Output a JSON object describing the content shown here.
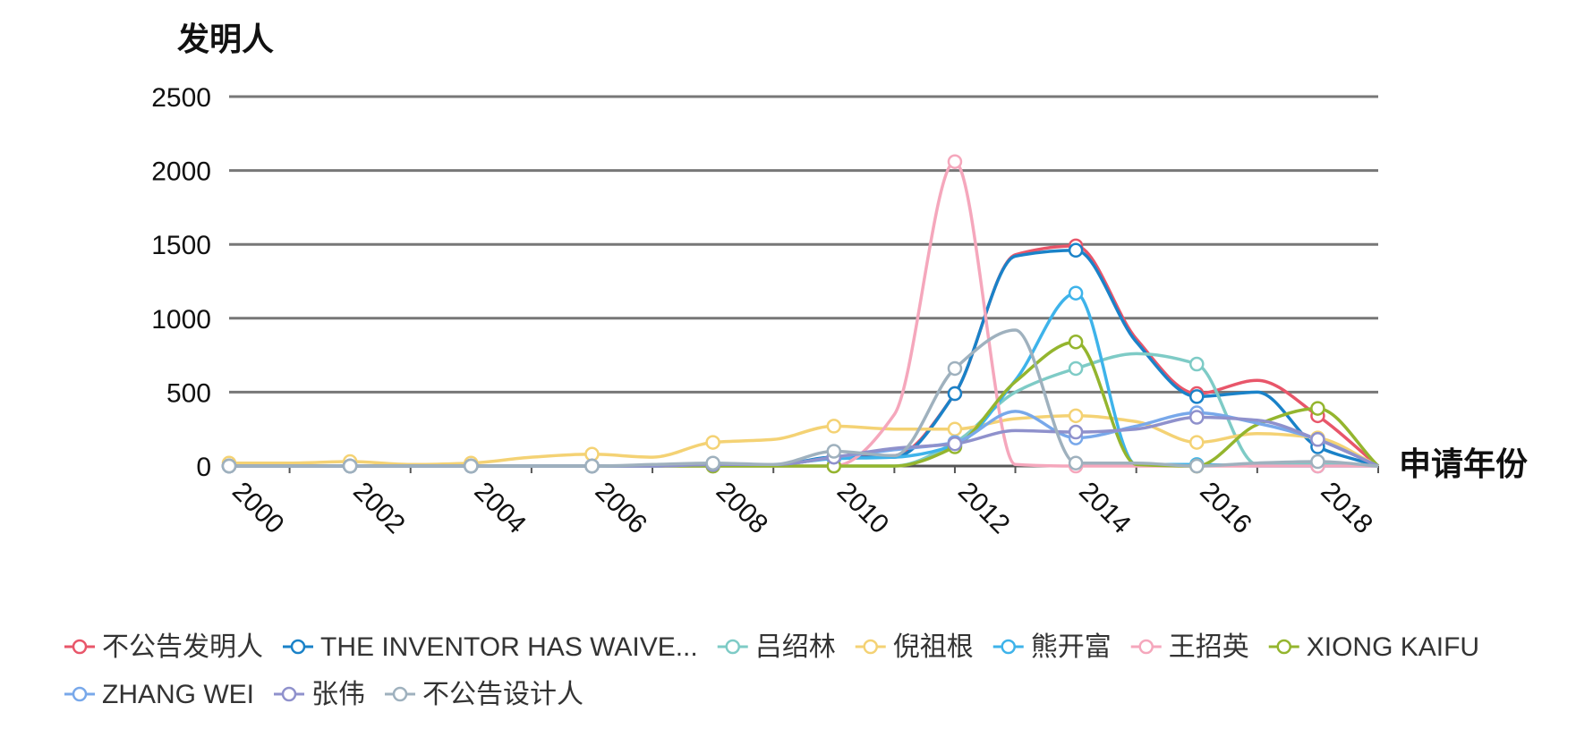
{
  "chart_data": {
    "type": "line",
    "smooth": true,
    "ylabel": "发明人",
    "xlabel": "申请年份",
    "ylim": [
      0,
      2500
    ],
    "yticks": [
      0,
      500,
      1000,
      1500,
      2000,
      2500
    ],
    "x": [
      2000,
      2001,
      2002,
      2003,
      2004,
      2005,
      2006,
      2007,
      2008,
      2009,
      2010,
      2011,
      2012,
      2013,
      2014,
      2015,
      2016,
      2017,
      2018,
      2019
    ],
    "xtick_labels": [
      "2000",
      "2002",
      "2004",
      "2006",
      "2008",
      "2010",
      "2012",
      "2014",
      "2016",
      "2018"
    ],
    "grid": "horizontal",
    "legend_position": "bottom",
    "series": [
      {
        "name": "不公告发明人",
        "color": "#e8566a",
        "values": [
          0,
          0,
          0,
          0,
          0,
          0,
          0,
          0,
          10,
          5,
          60,
          70,
          490,
          1430,
          1490,
          860,
          490,
          580,
          340,
          0
        ]
      },
      {
        "name": "THE INVENTOR HAS WAIVE...",
        "color": "#1a82c8",
        "values": [
          0,
          0,
          0,
          0,
          0,
          0,
          0,
          0,
          10,
          5,
          60,
          60,
          490,
          1420,
          1460,
          840,
          470,
          500,
          130,
          0
        ]
      },
      {
        "name": "吕绍林",
        "color": "#7ecbc6",
        "values": [
          0,
          0,
          0,
          0,
          0,
          0,
          0,
          0,
          0,
          0,
          0,
          0,
          160,
          500,
          660,
          760,
          690,
          10,
          10,
          0
        ]
      },
      {
        "name": "倪祖根",
        "color": "#f4d274",
        "values": [
          20,
          20,
          30,
          10,
          20,
          60,
          80,
          60,
          160,
          180,
          270,
          250,
          250,
          320,
          340,
          300,
          160,
          220,
          190,
          0
        ]
      },
      {
        "name": "熊开富",
        "color": "#3eb3ea",
        "values": [
          0,
          0,
          0,
          0,
          0,
          0,
          0,
          0,
          10,
          10,
          50,
          60,
          140,
          580,
          1170,
          10,
          10,
          0,
          0,
          0
        ]
      },
      {
        "name": "王招英",
        "color": "#f5a7bc",
        "values": [
          0,
          0,
          0,
          0,
          0,
          0,
          0,
          0,
          0,
          0,
          0,
          350,
          2060,
          10,
          0,
          0,
          0,
          0,
          0,
          0
        ]
      },
      {
        "name": "XIONG KAIFU",
        "color": "#94b52e",
        "values": [
          0,
          0,
          0,
          0,
          0,
          0,
          0,
          0,
          0,
          0,
          0,
          0,
          130,
          570,
          840,
          10,
          0,
          280,
          390,
          0
        ]
      },
      {
        "name": "ZHANG WEI",
        "color": "#78a8ea",
        "values": [
          0,
          0,
          0,
          0,
          0,
          0,
          0,
          0,
          10,
          10,
          60,
          110,
          160,
          370,
          190,
          270,
          360,
          290,
          180,
          0
        ]
      },
      {
        "name": "张伟",
        "color": "#8f91cc",
        "values": [
          0,
          0,
          0,
          0,
          0,
          0,
          0,
          0,
          10,
          10,
          60,
          120,
          150,
          240,
          230,
          250,
          330,
          310,
          180,
          0
        ]
      },
      {
        "name": "不公告设计人",
        "color": "#9fb1be",
        "values": [
          0,
          0,
          0,
          0,
          0,
          0,
          0,
          10,
          20,
          10,
          100,
          70,
          660,
          920,
          20,
          20,
          0,
          20,
          30,
          0
        ]
      }
    ]
  }
}
